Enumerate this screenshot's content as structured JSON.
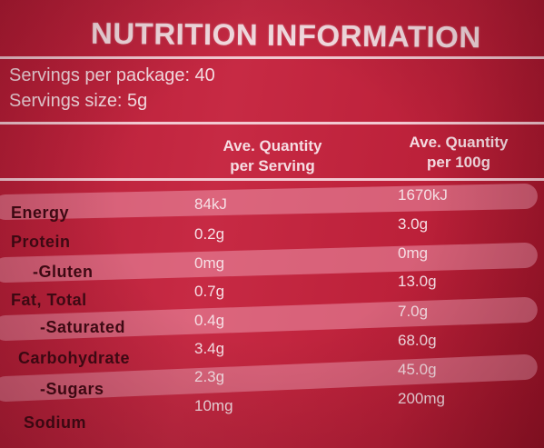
{
  "title": "NUTRITION INFORMATION",
  "servings_per_package": "Servings per package: 40",
  "serving_size": "Servings size: 5g",
  "columns": {
    "per_serving_line1": "Ave. Quantity",
    "per_serving_line2": "per Serving",
    "per_100g_line1": "Ave. Quantity",
    "per_100g_line2": "per 100g"
  },
  "rows": [
    {
      "label": "Energy",
      "per_serving": "84kJ",
      "per_100g": "1670kJ"
    },
    {
      "label": "Protein",
      "per_serving": "0.2g",
      "per_100g": "3.0g"
    },
    {
      "label": "-Gluten",
      "per_serving": "0mg",
      "per_100g": "0mg"
    },
    {
      "label": "Fat, Total",
      "per_serving": "0.7g",
      "per_100g": "13.0g"
    },
    {
      "label": "-Saturated",
      "per_serving": "0.4g",
      "per_100g": "7.0g"
    },
    {
      "label": "Carbohydrate",
      "per_serving": "3.4g",
      "per_100g": "68.0g"
    },
    {
      "label": "-Sugars",
      "per_serving": "2.3g",
      "per_100g": "45.0g"
    },
    {
      "label": "Sodium",
      "per_serving": "10mg",
      "per_100g": "200mg"
    }
  ]
}
